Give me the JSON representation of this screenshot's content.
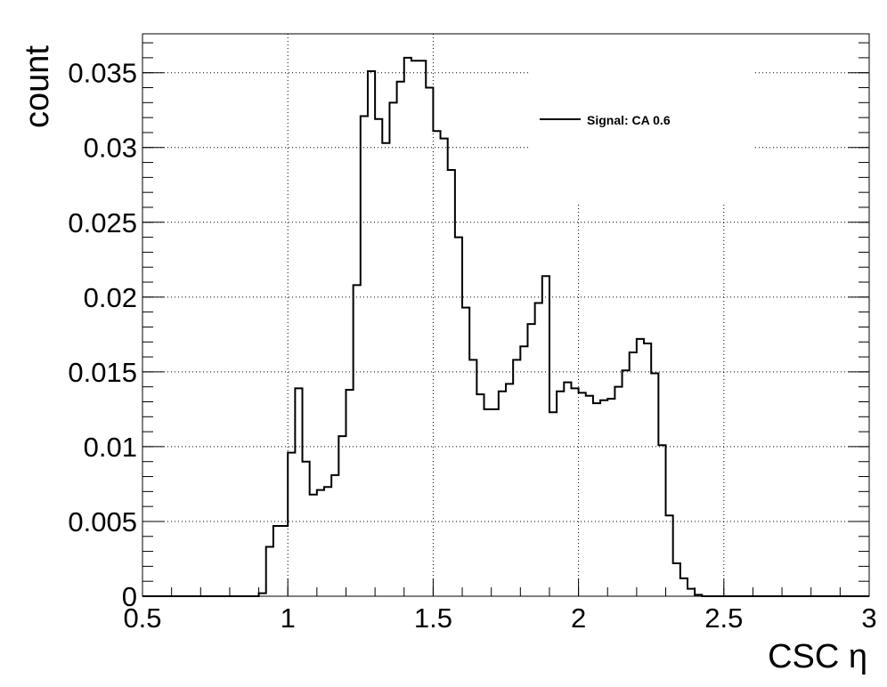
{
  "chart_data": {
    "type": "histogram",
    "title": "",
    "xlabel": "CSC η",
    "ylabel": "count",
    "xlim": [
      0.5,
      3.0
    ],
    "ylim": [
      0,
      0.0376
    ],
    "grid": true,
    "legend_position": "top-right",
    "x_ticks": [
      "0.5",
      "1",
      "1.5",
      "2",
      "2.5",
      "3"
    ],
    "y_ticks": [
      "0",
      "0.005",
      "0.01",
      "0.015",
      "0.02",
      "0.025",
      "0.03",
      "0.035"
    ],
    "bin_edges_start": 0.5,
    "bin_width": 0.025,
    "series": [
      {
        "name": "Signal: CA 0.6",
        "color": "#000000",
        "values": [
          0,
          0,
          0,
          0,
          0,
          0,
          0,
          0,
          0,
          0,
          0,
          0,
          0,
          0,
          0,
          0,
          0.0002,
          0.0033,
          0.0047,
          0.0047,
          0.0096,
          0.0139,
          0.009,
          0.0068,
          0.0071,
          0.0073,
          0.0081,
          0.0107,
          0.0138,
          0.0208,
          0.0321,
          0.0351,
          0.0319,
          0.0303,
          0.033,
          0.0344,
          0.036,
          0.0358,
          0.0358,
          0.034,
          0.0311,
          0.0306,
          0.0285,
          0.024,
          0.0193,
          0.0158,
          0.0135,
          0.0125,
          0.0125,
          0.0137,
          0.0142,
          0.0158,
          0.0167,
          0.0182,
          0.0196,
          0.0214,
          0.0123,
          0.0137,
          0.0143,
          0.0139,
          0.0136,
          0.0134,
          0.0129,
          0.0131,
          0.0132,
          0.014,
          0.0151,
          0.0163,
          0.0172,
          0.0169,
          0.0149,
          0.0101,
          0.0054,
          0.0022,
          0.0012,
          0.0005,
          0.0001,
          0,
          0,
          0,
          0,
          0,
          0,
          0,
          0,
          0,
          0,
          0,
          0,
          0,
          0,
          0,
          0,
          0,
          0,
          0,
          0,
          0,
          0,
          0
        ]
      }
    ]
  }
}
